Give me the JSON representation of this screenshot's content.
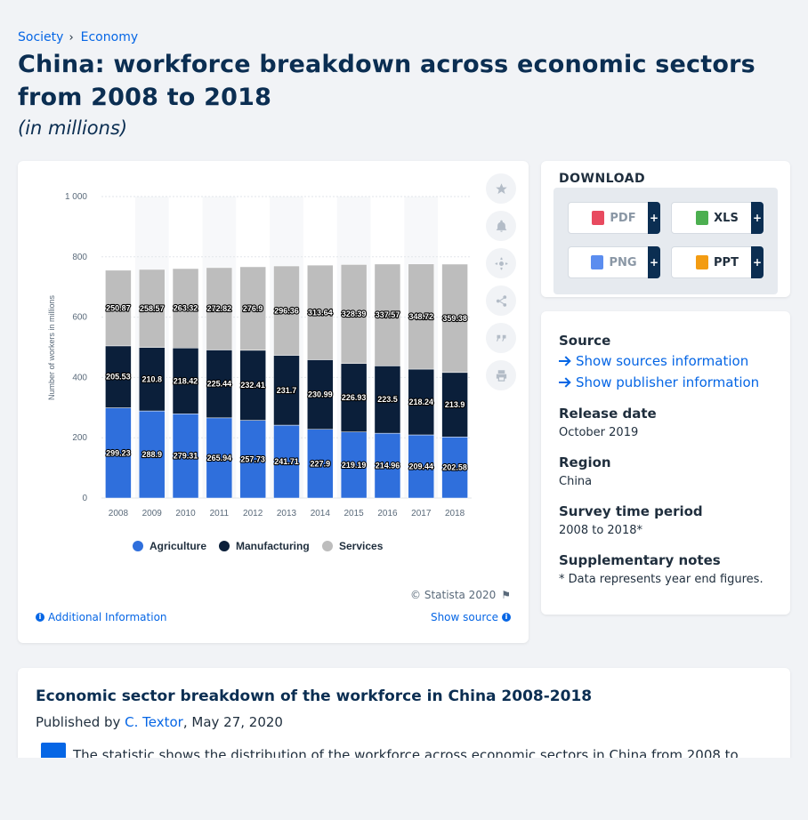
{
  "breadcrumb": [
    "Society",
    "Economy"
  ],
  "page_title": "China: workforce breakdown across economic sectors from 2008 to 2018",
  "subtitle": "(in millions)",
  "chart_data": {
    "type": "bar",
    "stacked": true,
    "categories": [
      "2008",
      "2009",
      "2010",
      "2011",
      "2012",
      "2013",
      "2014",
      "2015",
      "2016",
      "2017",
      "2018"
    ],
    "series": [
      {
        "name": "Agriculture",
        "color": "#2f6fdc",
        "values": [
          299.23,
          288.9,
          279.31,
          265.94,
          257.73,
          241.71,
          227.9,
          219.19,
          214.96,
          209.44,
          202.58
        ]
      },
      {
        "name": "Manufacturing",
        "color": "#0b1f3a",
        "values": [
          205.53,
          210.8,
          218.42,
          225.44,
          232.41,
          231.7,
          230.99,
          226.93,
          223.5,
          218.24,
          213.9
        ]
      },
      {
        "name": "Services",
        "color": "#bdbdbd",
        "values": [
          250.87,
          258.57,
          263.32,
          272.82,
          276.9,
          296.36,
          313.64,
          328.39,
          337.57,
          348.72,
          359.38
        ]
      }
    ],
    "ylabel": "Number of workers in millions",
    "ylim": [
      0,
      1000
    ],
    "yticks": [
      0,
      200,
      400,
      600,
      800,
      1000
    ],
    "ytick_labels": [
      "0",
      "200",
      "400",
      "600",
      "800",
      "1 000"
    ],
    "legend_position": "bottom-center",
    "grid": true
  },
  "credit": "© Statista 2020",
  "additional_info": "Additional Information",
  "show_source": "Show source",
  "download": {
    "heading": "DOWNLOAD",
    "buttons": [
      {
        "label": "PDF",
        "icon": "pdf-file-icon",
        "color": "#e84a5f"
      },
      {
        "label": "XLS",
        "icon": "xls-file-icon",
        "color": "#4caf50"
      },
      {
        "label": "PNG",
        "icon": "png-file-icon",
        "color": "#5b8def"
      },
      {
        "label": "PPT",
        "icon": "ppt-file-icon",
        "color": "#f39c12"
      }
    ],
    "plus": "+"
  },
  "info": {
    "source_label": "Source",
    "show_sources": "Show sources information",
    "show_publisher": "Show publisher information",
    "release_label": "Release date",
    "release_value": "October 2019",
    "region_label": "Region",
    "region_value": "China",
    "survey_label": "Survey time period",
    "survey_value": "2008 to 2018*",
    "notes_label": "Supplementary notes",
    "notes_value": "* Data represents year end figures."
  },
  "article": {
    "title": "Economic sector breakdown of the workforce in China 2008-2018",
    "published_prefix": "Published by ",
    "author": "C. Textor",
    "date": ", May 27, 2020",
    "text": "The statistic shows the distribution of the workforce across economic sectors in China from 2008 to"
  },
  "colors": {
    "accent": "#0666e5",
    "title": "#0b2e52"
  }
}
